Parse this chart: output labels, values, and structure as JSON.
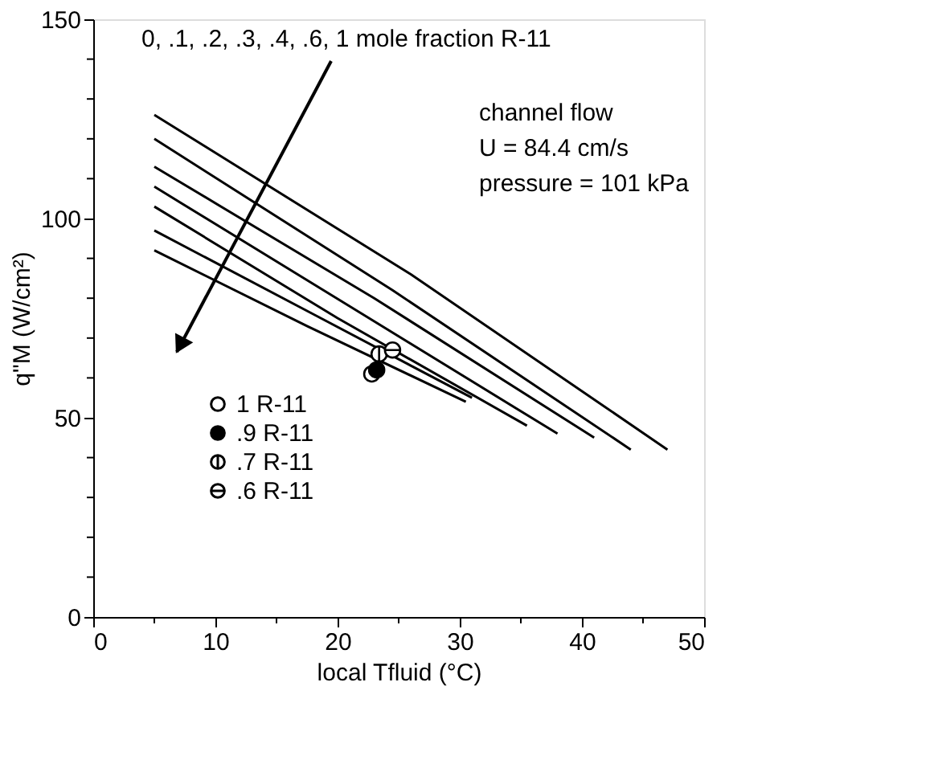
{
  "chart_data": {
    "type": "line",
    "xlabel": "local Tfluid (°C)",
    "ylabel": "q\"M (W/cm²)",
    "xlim": [
      0,
      50
    ],
    "ylim": [
      0,
      150
    ],
    "xticks": [
      0,
      {
        "value": 5,
        "label": null
      },
      10,
      {
        "value": 15,
        "label": null
      },
      20,
      {
        "value": 25,
        "label": null
      },
      30,
      {
        "value": 35,
        "label": null
      },
      40,
      {
        "value": 45,
        "label": null
      },
      50
    ],
    "yticks": [
      0,
      {
        "value": 10,
        "label": null
      },
      {
        "value": 20,
        "label": null
      },
      {
        "value": 30,
        "label": null
      },
      {
        "value": 40,
        "label": null
      },
      50,
      {
        "value": 60,
        "label": null
      },
      {
        "value": 70,
        "label": null
      },
      {
        "value": 80,
        "label": null
      },
      {
        "value": 90,
        "label": null
      },
      100,
      {
        "value": 110,
        "label": null
      },
      {
        "value": 120,
        "label": null
      },
      {
        "value": 130,
        "label": null
      },
      {
        "value": 140,
        "label": null
      },
      150
    ],
    "grid": false,
    "legend": "bottom left",
    "line_style": "solid",
    "series": [
      {
        "color": "#000000",
        "x": [
          5,
          26,
          47
        ],
        "values": [
          126,
          86,
          42
        ]
      },
      {
        "color": "#000000",
        "x": [
          5,
          24.5,
          44
        ],
        "values": [
          120,
          82,
          42
        ]
      },
      {
        "color": "#000000",
        "x": [
          5,
          23,
          41
        ],
        "values": [
          113,
          80,
          45
        ]
      },
      {
        "color": "#000000",
        "x": [
          5,
          21.5,
          38
        ],
        "values": [
          108,
          77,
          46
        ]
      },
      {
        "color": "#000000",
        "x": [
          5,
          20,
          35.5
        ],
        "values": [
          103,
          75,
          48
        ]
      },
      {
        "color": "#000000",
        "x": [
          5,
          18,
          31
        ],
        "values": [
          97,
          76,
          55
        ]
      },
      {
        "color": "#000000",
        "x": [
          5,
          17.5,
          30.5
        ],
        "values": [
          92,
          73,
          54
        ]
      },
      {
        "type": "scatter",
        "name": "1 R-11",
        "color": "#000000",
        "x": [
          22.8
        ],
        "values": [
          61
        ]
      },
      {
        "type": "scatter",
        "name": ".9 R-11",
        "color": "#000000",
        "x": [
          23.2
        ],
        "values": [
          62
        ]
      },
      {
        "type": "scatter",
        "name": ".7 R-11",
        "color": "#000000",
        "x": [
          23.4
        ],
        "values": [
          66
        ]
      },
      {
        "type": "scatter",
        "name": ".6 R-11",
        "color": "#000000",
        "x": [
          24.5
        ],
        "values": [
          67
        ]
      }
    ],
    "annotations": [
      "0, .1, .2, .3, .4, .6, 1  mole fraction R-11",
      "channel flow",
      "U = 84.4 cm/s",
      "pressure = 101  kPa"
    ]
  }
}
